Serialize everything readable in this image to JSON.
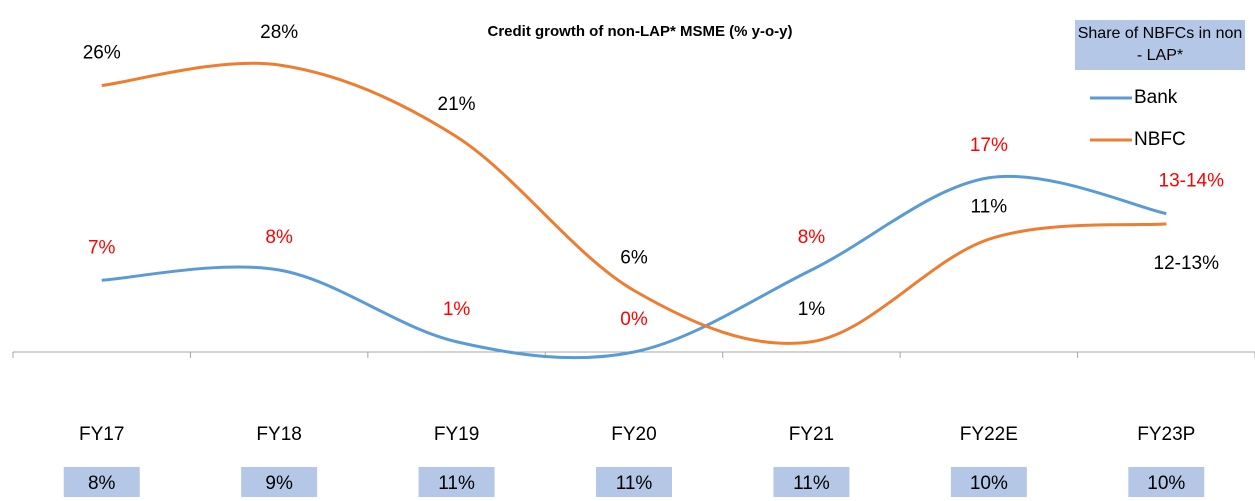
{
  "chart_data": {
    "type": "line",
    "title": "Credit growth of non-LAP* MSME (% y-o-y)",
    "categories": [
      "FY17",
      "FY18",
      "FY19",
      "FY20",
      "FY21",
      "FY22E",
      "FY23P"
    ],
    "series": [
      {
        "name": "Bank",
        "color": "#5b9bd5",
        "label_color": "#ff0000",
        "values": [
          7,
          8,
          1,
          0,
          8,
          17,
          13.5
        ],
        "value_labels": [
          "7%",
          "8%",
          "1%",
          "0%",
          "8%",
          "17%",
          "13-14%"
        ]
      },
      {
        "name": "NBFC",
        "color": "#ed7d31",
        "label_color": "#000000",
        "values": [
          26,
          28,
          21,
          6,
          1,
          11,
          12.5
        ],
        "value_labels": [
          "26%",
          "28%",
          "21%",
          "6%",
          "1%",
          "11%",
          "12-13%"
        ]
      }
    ],
    "ylim": [
      0,
      30
    ],
    "share": {
      "title": "Share of NBFCs in non - LAP*",
      "color": "#b4c7e7",
      "values": [
        8,
        9,
        11,
        11,
        11,
        10,
        10
      ],
      "value_labels": [
        "8%",
        "9%",
        "11%",
        "11%",
        "11%",
        "10%",
        "10%"
      ]
    }
  }
}
